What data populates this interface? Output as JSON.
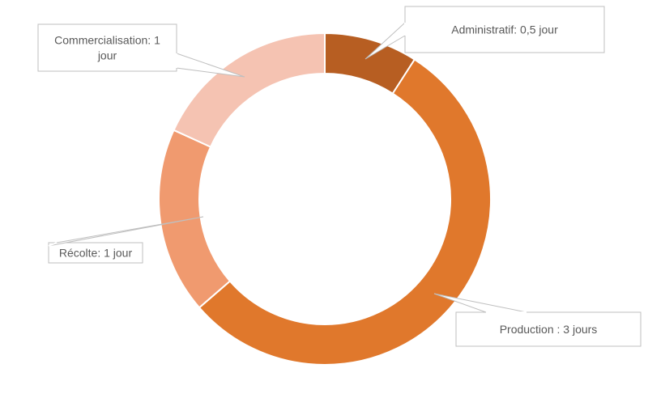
{
  "chart_data": {
    "type": "pie",
    "donut": true,
    "title": "",
    "slices": [
      {
        "label": "Administratif",
        "value": 0.5,
        "color": "#B75E22",
        "callout": [
          "Administratif: 0,5 jour"
        ]
      },
      {
        "label": "Production",
        "value": 3,
        "color": "#E0782C",
        "callout": [
          "Production : 3 jours"
        ]
      },
      {
        "label": "Récolte",
        "value": 1,
        "color": "#F09A6F",
        "callout": [
          "Récolte: 1 jour"
        ]
      },
      {
        "label": "Commercialisation",
        "value": 1,
        "color": "#F5C3B2",
        "callout": [
          "Commercialisation: 1",
          "jour"
        ]
      }
    ],
    "legend": "none"
  }
}
